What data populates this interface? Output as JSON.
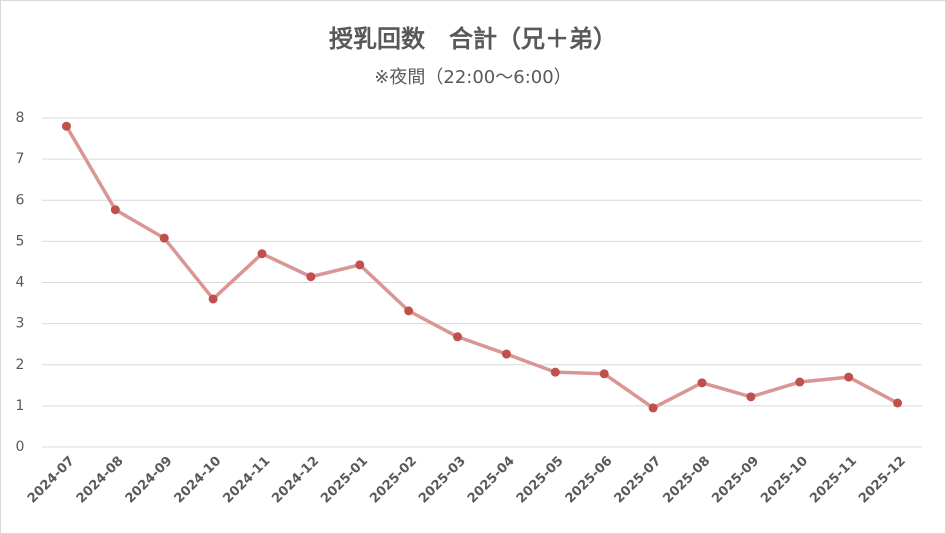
{
  "chart_data": {
    "type": "line",
    "title": "授乳回数　合計（兄＋弟）",
    "subtitle": "※夜間（22:00～6:00）",
    "categories": [
      "2024-07",
      "2024-08",
      "2024-09",
      "2024-10",
      "2024-11",
      "2024-12",
      "2025-01",
      "2025-02",
      "2025-03",
      "2025-04",
      "2025-05",
      "2025-06",
      "2025-07",
      "2025-08",
      "2025-09",
      "2025-10",
      "2025-11",
      "2025-12"
    ],
    "values": [
      7.8,
      5.77,
      5.08,
      3.6,
      4.7,
      4.14,
      4.43,
      3.31,
      2.68,
      2.26,
      1.82,
      1.78,
      0.95,
      1.56,
      1.22,
      1.58,
      1.7,
      1.07
    ],
    "color": "#d99694",
    "marker_color": "#c0504d",
    "ylim": [
      0,
      8
    ],
    "yticks": [
      0,
      1,
      2,
      3,
      4,
      5,
      6,
      7,
      8
    ],
    "grid": true
  }
}
